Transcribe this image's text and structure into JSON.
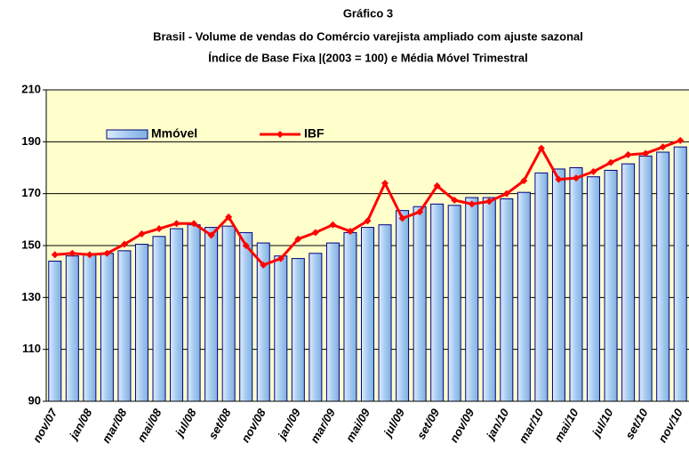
{
  "chart_data": {
    "type": "bar-line",
    "title": "Gráfico 3",
    "subtitle": [
      "Brasil - Volume de vendas do Comércio varejista ampliado com ajuste sazonal",
      "Índice de Base Fixa |(2003 = 100) e Média Móvel Trimestral"
    ],
    "categories": [
      "nov/07",
      null,
      "jan/08",
      null,
      "mar/08",
      null,
      "mai/08",
      null,
      "jul/08",
      null,
      "set/08",
      null,
      "nov/08",
      null,
      "jan/09",
      null,
      "mar/09",
      null,
      "mai/09",
      null,
      "jul/09",
      null,
      "set/09",
      null,
      "nov/09",
      null,
      "jan/10",
      null,
      "mar/10",
      null,
      "mai/10",
      null,
      "jul/10",
      null,
      "set/10",
      null,
      "nov/10"
    ],
    "series": [
      {
        "name": "Mmóvel",
        "type": "bar",
        "color": "#a6caf0",
        "values": [
          144,
          146,
          146.5,
          147,
          148,
          150.5,
          153.5,
          156.5,
          158,
          157,
          157.5,
          155,
          151,
          146,
          145,
          147,
          151,
          155,
          157,
          158,
          163.5,
          165,
          166,
          165.5,
          168.5,
          168.5,
          168,
          170.5,
          178,
          179.5,
          180,
          176.5,
          179,
          181.5,
          184.5,
          186,
          188
        ]
      },
      {
        "name": "IBF",
        "type": "line",
        "color": "#ff0000",
        "values": [
          146.5,
          147,
          146.5,
          147,
          150.5,
          154.5,
          156.5,
          158.5,
          158.5,
          154,
          161,
          150,
          142.5,
          145,
          152.5,
          155,
          158,
          155.5,
          159.5,
          174,
          160.5,
          163,
          173,
          167.5,
          166,
          167,
          170,
          175,
          187.5,
          175.5,
          176,
          178.5,
          182,
          185,
          185.5,
          188,
          190.5
        ]
      }
    ],
    "ylim": [
      90,
      210
    ],
    "yticks": [
      90,
      110,
      130,
      150,
      170,
      190,
      210
    ],
    "grid": true
  }
}
